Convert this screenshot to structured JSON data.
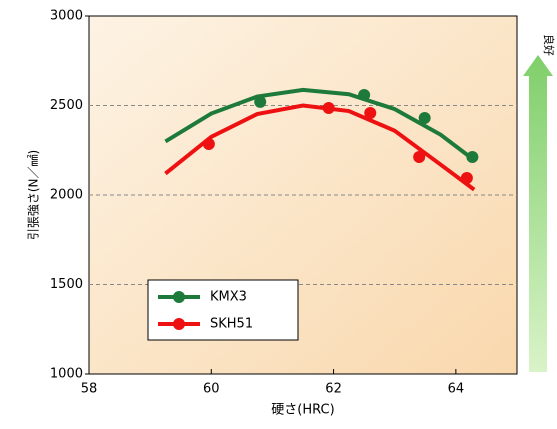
{
  "chart_data": {
    "type": "scatter",
    "xlabel": "硬さ(HRC)",
    "ylabel": "引張強さ(N／㎟)",
    "annotation": "良好",
    "xlim": [
      58,
      65
    ],
    "xticks": [
      58,
      60,
      62,
      64
    ],
    "ylim": [
      1000,
      3000
    ],
    "yticks": [
      1000,
      1500,
      2000,
      2500,
      3000
    ],
    "grid": true,
    "legend": "lower left",
    "series": [
      {
        "name": "KMX3",
        "color": "#1e7a3a",
        "x": [
          60.8,
          62.5,
          63.49,
          64.27
        ],
        "values": [
          2520,
          2559,
          2430,
          2212
        ],
        "fit_x": [
          59.25,
          60,
          60.75,
          61.5,
          62.25,
          63,
          63.75,
          64.3
        ],
        "fit_values": [
          2299,
          2455,
          2550,
          2587,
          2563,
          2480,
          2337,
          2195
        ]
      },
      {
        "name": "SKH51",
        "color": "#ee1111",
        "x": [
          59.96,
          61.92,
          62.6,
          63.4,
          64.18
        ],
        "values": [
          2285,
          2486,
          2458,
          2212,
          2095
        ],
        "fit_x": [
          59.25,
          60,
          60.75,
          61.5,
          62.25,
          63,
          63.75,
          64.3
        ],
        "fit_values": [
          2120,
          2325,
          2452,
          2500,
          2469,
          2359,
          2170,
          2030
        ]
      }
    ]
  }
}
